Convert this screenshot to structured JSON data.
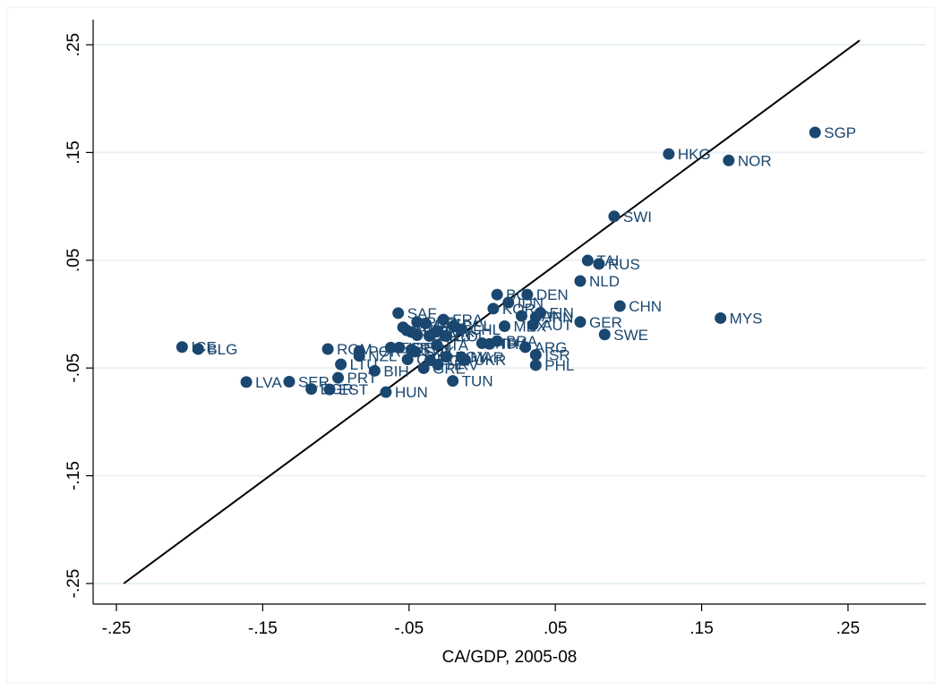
{
  "chart_data": {
    "type": "scatter",
    "title": "",
    "xlabel": "CA/GDP, 2005-08",
    "ylabel": "",
    "xlim": [
      -0.27,
      0.31
    ],
    "ylim": [
      -0.27,
      0.27
    ],
    "xticks": [
      -0.25,
      -0.15,
      -0.05,
      0.05,
      0.15,
      0.25
    ],
    "xtick_labels": [
      "-.25",
      "-.15",
      "-.05",
      ".05",
      ".15",
      ".25"
    ],
    "yticks": [
      -0.25,
      -0.15,
      -0.05,
      0.05,
      0.15,
      0.25
    ],
    "ytick_labels": [
      "-.25",
      "-.15",
      "-.05",
      ".05",
      ".15",
      ".25"
    ],
    "grid": "horizontal",
    "marker_color": "#1a476f",
    "reference_line": {
      "x": [
        -0.245,
        0.258
      ],
      "y": [
        -0.25,
        0.254
      ]
    },
    "points": [
      {
        "label": "SGP",
        "x": 0.2275,
        "y": 0.1686
      },
      {
        "label": "HKG",
        "x": 0.1275,
        "y": 0.1486
      },
      {
        "label": "NOR",
        "x": 0.1685,
        "y": 0.1426
      },
      {
        "label": "SWI",
        "x": 0.0902,
        "y": 0.0907
      },
      {
        "label": "TAI",
        "x": 0.0721,
        "y": 0.0498
      },
      {
        "label": "RUS",
        "x": 0.0798,
        "y": 0.0466
      },
      {
        "label": "NLD",
        "x": 0.067,
        "y": 0.0307
      },
      {
        "label": "CHN",
        "x": 0.0941,
        "y": 0.0075
      },
      {
        "label": "MYS",
        "x": 0.1629,
        "y": -0.0037
      },
      {
        "label": "GER",
        "x": 0.067,
        "y": -0.0073
      },
      {
        "label": "SWE",
        "x": 0.0837,
        "y": -0.0189
      },
      {
        "label": "AUT",
        "x": 0.0347,
        "y": -0.0099
      },
      {
        "label": "PHL",
        "x": 0.0366,
        "y": -0.0473
      },
      {
        "label": "ISR",
        "x": 0.0366,
        "y": -0.0378
      },
      {
        "label": "ARG",
        "x": 0.0295,
        "y": -0.0306
      },
      {
        "label": "FIN",
        "x": 0.0398,
        "y": 0.0012
      },
      {
        "label": "JPN",
        "x": 0.0366,
        "y": -0.0027
      },
      {
        "label": "DEN",
        "x": 0.0308,
        "y": 0.0181
      },
      {
        "label": "BOL",
        "x": 0.0102,
        "y": 0.0181
      },
      {
        "label": "KOR",
        "x": 0.0076,
        "y": 0.0051
      },
      {
        "label": "IDN",
        "x": 0.0179,
        "y": 0.0108
      },
      {
        "label": "CAN",
        "x": 0.0269,
        "y": -0.0017
      },
      {
        "label": "BRA",
        "x": 0.0102,
        "y": -0.025
      },
      {
        "label": "IND",
        "x": -0.0001,
        "y": -0.027
      },
      {
        "label": "THA",
        "x": 0.005,
        "y": -0.0276
      },
      {
        "label": "MEX",
        "x": 0.0153,
        "y": -0.0112
      },
      {
        "label": "UKR",
        "x": -0.0117,
        "y": -0.0424
      },
      {
        "label": "MAR",
        "x": -0.0143,
        "y": -0.0399
      },
      {
        "label": "TUN",
        "x": -0.0201,
        "y": -0.062
      },
      {
        "label": "EGY",
        "x": -0.0246,
        "y": -0.0396
      },
      {
        "label": "ITA",
        "x": -0.031,
        "y": -0.0286
      },
      {
        "label": "FRA",
        "x": -0.0265,
        "y": -0.0051
      },
      {
        "label": "CHL",
        "x": -0.0143,
        "y": -0.014
      },
      {
        "label": "BEL",
        "x": -0.0194,
        "y": -0.0108
      },
      {
        "label": "COL",
        "x": -0.0246,
        "y": -0.0203
      },
      {
        "label": "PAK",
        "x": -0.0313,
        "y": -0.0163
      },
      {
        "label": "URU",
        "x": -0.0361,
        "y": -0.0203
      },
      {
        "label": "SAF",
        "x": -0.0574,
        "y": 0.0009
      },
      {
        "label": "PER",
        "x": -0.0445,
        "y": -0.0073
      },
      {
        "label": "CRI",
        "x": -0.0387,
        "y": -0.0086
      },
      {
        "label": "TUR",
        "x": -0.0484,
        "y": -0.0166
      },
      {
        "label": "AUS",
        "x": -0.0541,
        "y": -0.0122
      },
      {
        "label": "GBR",
        "x": -0.0516,
        "y": -0.0151
      },
      {
        "label": "USA",
        "x": -0.0445,
        "y": -0.0195
      },
      {
        "label": "SVK",
        "x": -0.0458,
        "y": -0.0348
      },
      {
        "label": "POL",
        "x": -0.0355,
        "y": -0.0429
      },
      {
        "label": "HRV",
        "x": -0.0303,
        "y": -0.0469
      },
      {
        "label": "GRE",
        "x": -0.04,
        "y": -0.0502
      },
      {
        "label": "SVN",
        "x": -0.0484,
        "y": -0.033
      },
      {
        "label": "ESP",
        "x": -0.0625,
        "y": -0.031
      },
      {
        "label": "CZE",
        "x": -0.051,
        "y": -0.042
      },
      {
        "label": "IRE",
        "x": -0.0567,
        "y": -0.031
      },
      {
        "label": "NZL",
        "x": -0.084,
        "y": -0.0388
      },
      {
        "label": "LTU",
        "x": -0.0966,
        "y": -0.0466
      },
      {
        "label": "ROM",
        "x": -0.1055,
        "y": -0.0324
      },
      {
        "label": "PRT",
        "x": -0.0985,
        "y": -0.0591
      },
      {
        "label": "POR",
        "x": -0.084,
        "y": -0.0344
      },
      {
        "label": "BIH",
        "x": -0.0735,
        "y": -0.0526
      },
      {
        "label": "HUN",
        "x": -0.0658,
        "y": -0.0724
      },
      {
        "label": "SER",
        "x": -0.1319,
        "y": -0.0627
      },
      {
        "label": "EST",
        "x": -0.1043,
        "y": -0.0699
      },
      {
        "label": "BGR",
        "x": -0.1168,
        "y": -0.0695
      },
      {
        "label": "LVA",
        "x": -0.1612,
        "y": -0.063
      },
      {
        "label": "ICE",
        "x": -0.2051,
        "y": -0.0305
      },
      {
        "label": "BLG",
        "x": -0.1941,
        "y": -0.0324
      }
    ]
  }
}
